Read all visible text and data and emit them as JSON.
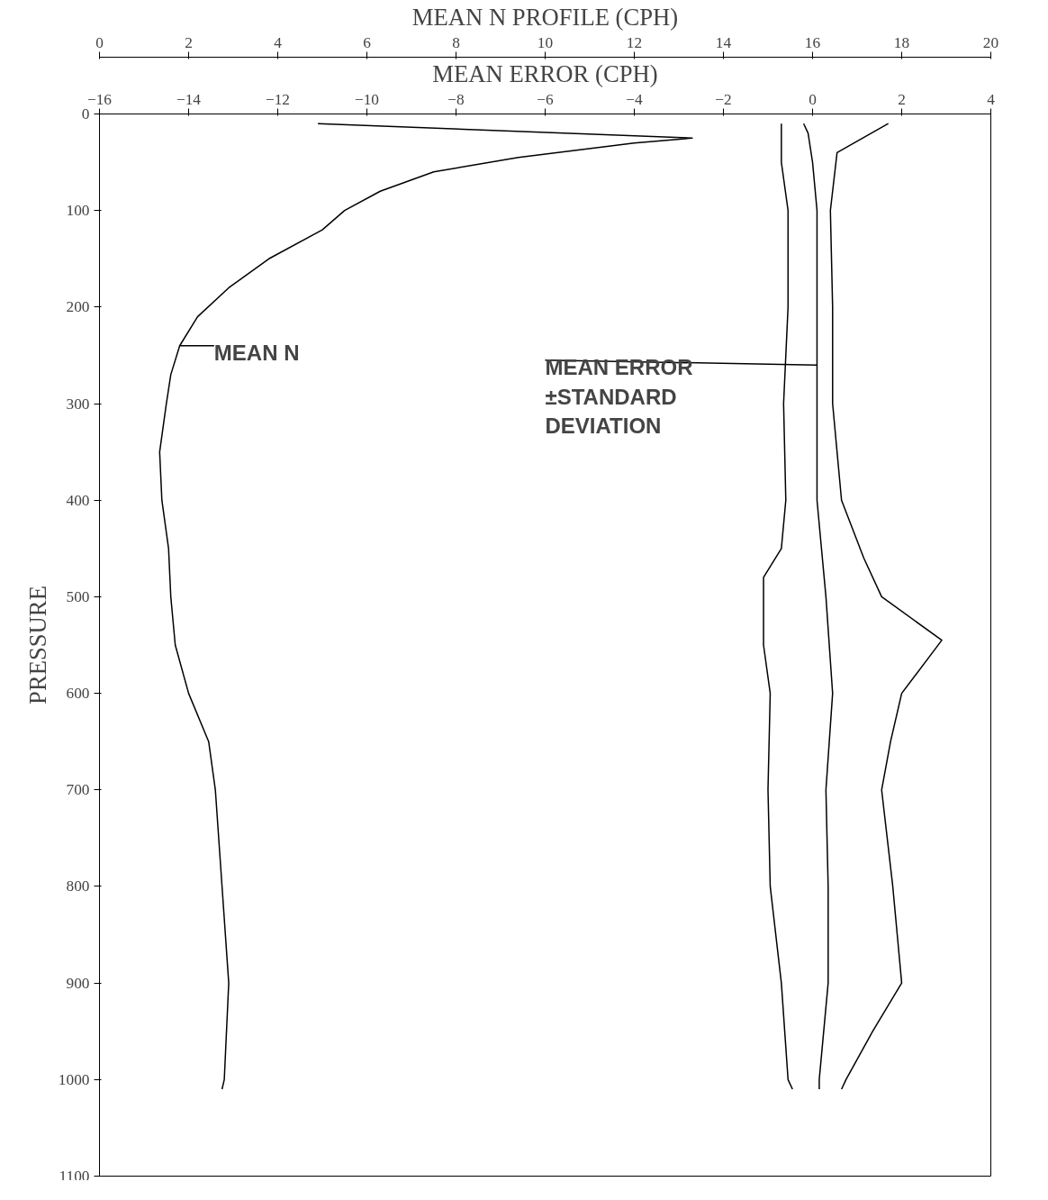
{
  "chart_data": {
    "type": "line",
    "x2label": "MEAN N PROFILE (CPH)",
    "xlabel": "MEAN ERROR (CPH)",
    "ylabel": "PRESSURE",
    "xlim": [
      -16,
      4
    ],
    "xticks": [
      -16,
      -14,
      -12,
      -10,
      -8,
      -6,
      -4,
      -2,
      0,
      2,
      4
    ],
    "x2lim": [
      0,
      20
    ],
    "x2ticks": [
      0,
      2,
      4,
      6,
      8,
      10,
      12,
      14,
      16,
      18,
      20
    ],
    "ylim": [
      1100,
      0
    ],
    "yticks": [
      0,
      100,
      200,
      300,
      400,
      500,
      600,
      700,
      800,
      900,
      1000,
      1100
    ],
    "grid": false,
    "marker": "none",
    "line_style": "solid",
    "annotations": [
      {
        "text": "MEAN N",
        "x": -14.2,
        "y": 240
      },
      {
        "text": "MEAN ERROR\n±STANDARD\nDEVIATION",
        "x": 0.1,
        "y": 260
      }
    ],
    "series": [
      {
        "color": "#000000",
        "axis": "x2",
        "values": [
          10,
          25,
          30,
          45,
          60,
          80,
          100,
          120,
          150,
          180,
          210,
          240,
          270,
          300,
          350,
          400,
          450,
          500,
          550,
          600,
          650,
          700,
          800,
          900,
          1000,
          1010
        ],
        "x": [
          4.9,
          13.3,
          12.0,
          9.4,
          7.5,
          6.3,
          5.5,
          5.0,
          3.8,
          2.9,
          2.2,
          1.8,
          1.6,
          1.5,
          1.35,
          1.4,
          1.55,
          1.6,
          1.7,
          2.0,
          2.45,
          2.6,
          2.75,
          2.9,
          2.8,
          2.75
        ]
      },
      {
        "color": "#000000",
        "values": [
          10,
          20,
          50,
          100,
          200,
          300,
          400,
          500,
          600,
          700,
          800,
          900,
          1000,
          1010
        ],
        "x": [
          -0.2,
          -0.1,
          0,
          0.1,
          0.1,
          0.1,
          0.1,
          0.3,
          0.45,
          0.3,
          0.35,
          0.35,
          0.15,
          0.15
        ]
      },
      {
        "color": "#000000",
        "values": [
          10,
          50,
          100,
          200,
          300,
          400,
          450,
          480,
          550,
          600,
          700,
          800,
          900,
          1000,
          1010
        ],
        "x": [
          -0.7,
          -0.7,
          -0.55,
          -0.55,
          -0.65,
          -0.6,
          -0.7,
          -1.1,
          -1.1,
          -0.95,
          -1.0,
          -0.95,
          -0.7,
          -0.55,
          -0.45
        ]
      },
      {
        "color": "#000000",
        "values": [
          10,
          40,
          100,
          200,
          300,
          400,
          460,
          500,
          545,
          600,
          650,
          700,
          800,
          850,
          900,
          950,
          1000,
          1010
        ],
        "x": [
          1.7,
          0.55,
          0.4,
          0.45,
          0.45,
          0.65,
          1.15,
          1.55,
          2.9,
          2.0,
          1.75,
          1.55,
          1.8,
          1.9,
          2.0,
          1.35,
          0.75,
          0.65
        ]
      }
    ]
  }
}
